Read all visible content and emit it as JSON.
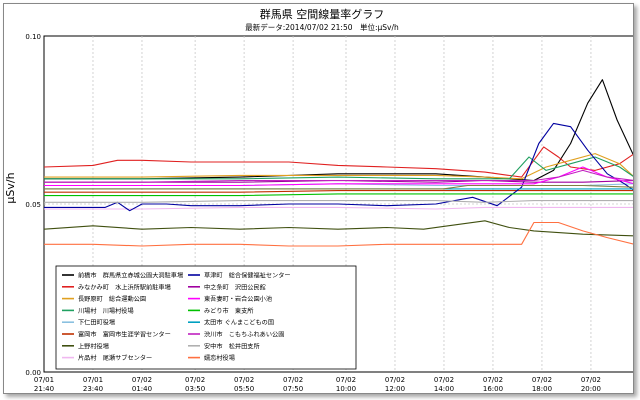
{
  "chart_data": {
    "type": "line",
    "title": "群馬県 空間線量率グラフ",
    "subtitle": "最新データ:2014/07/02 21:50　単位:μSv/h",
    "ylabel": "μSv/h",
    "xlabel": "",
    "ylim": [
      0,
      0.1
    ],
    "y_ticks": [
      "0.00",
      "0.05",
      "0.10"
    ],
    "x_range": [
      0,
      24.17
    ],
    "grid": true,
    "legend_position": "bottom-left-inside",
    "x_ticks": [
      {
        "x": 0,
        "date": "07/01",
        "time": "21:40"
      },
      {
        "x": 2,
        "date": "07/01",
        "time": "23:40"
      },
      {
        "x": 4,
        "date": "07/02",
        "time": "01:40"
      },
      {
        "x": 6.17,
        "date": "07/02",
        "time": "03:50"
      },
      {
        "x": 8.17,
        "date": "07/02",
        "time": "05:50"
      },
      {
        "x": 10.17,
        "date": "07/02",
        "time": "07:50"
      },
      {
        "x": 12.33,
        "date": "07/02",
        "time": "10:00"
      },
      {
        "x": 14.33,
        "date": "07/02",
        "time": "12:00"
      },
      {
        "x": 16.33,
        "date": "07/02",
        "time": "14:00"
      },
      {
        "x": 18.33,
        "date": "07/02",
        "time": "16:00"
      },
      {
        "x": 20.33,
        "date": "07/02",
        "time": "18:00"
      },
      {
        "x": 22.33,
        "date": "07/02",
        "time": "20:00"
      }
    ],
    "series": [
      {
        "name": "前橋市　群馬県立赤城公園大洞駐車場",
        "color": "#000000",
        "x": [
          0,
          4,
          8,
          12,
          16,
          18,
          20,
          20.8,
          21.5,
          22.2,
          22.8,
          23.4,
          24.1
        ],
        "values": [
          0.0575,
          0.0575,
          0.058,
          0.059,
          0.059,
          0.058,
          0.057,
          0.06,
          0.068,
          0.08,
          0.087,
          0.075,
          0.064
        ]
      },
      {
        "name": "みなかみ町　水上浜所駅前駐車場",
        "color": "#e02020",
        "x": [
          0,
          2,
          3,
          4,
          6,
          8,
          10,
          12,
          14,
          16,
          18,
          19.5,
          20.4,
          21,
          21.5,
          22.5,
          23.5,
          24.1
        ],
        "values": [
          0.061,
          0.0615,
          0.063,
          0.063,
          0.0625,
          0.0625,
          0.0625,
          0.0615,
          0.061,
          0.0605,
          0.0595,
          0.058,
          0.067,
          0.064,
          0.061,
          0.06,
          0.062,
          0.065
        ]
      },
      {
        "name": "長野原町　総合運動公園",
        "color": "#e0a020",
        "x": [
          0,
          4,
          8,
          12,
          16,
          18,
          19.5,
          20.5,
          21.5,
          22.5,
          23.5,
          24.1
        ],
        "values": [
          0.058,
          0.058,
          0.0585,
          0.0585,
          0.0585,
          0.058,
          0.0575,
          0.061,
          0.063,
          0.065,
          0.062,
          0.058
        ]
      },
      {
        "name": "川場村　川場村役場",
        "color": "#20a060",
        "x": [
          0,
          4,
          8,
          12,
          16,
          17.5,
          19,
          19.8,
          20.5,
          21.5,
          22.5,
          23.5,
          24.1
        ],
        "values": [
          0.0575,
          0.0575,
          0.0575,
          0.058,
          0.0575,
          0.0575,
          0.0575,
          0.064,
          0.06,
          0.062,
          0.064,
          0.061,
          0.058
        ]
      },
      {
        "name": "下仁田町役場",
        "color": "#8ac0e0",
        "x": [
          0,
          4,
          8,
          12,
          16,
          18,
          20,
          22,
          24.1
        ],
        "values": [
          0.0555,
          0.0555,
          0.0555,
          0.056,
          0.0555,
          0.0555,
          0.0555,
          0.0555,
          0.056
        ]
      },
      {
        "name": "富岡市　富岡市生涯学習センター",
        "color": "#c03000",
        "x": [
          0,
          4,
          8,
          12,
          16,
          18,
          20,
          22,
          24.1
        ],
        "values": [
          0.0535,
          0.0535,
          0.0535,
          0.054,
          0.054,
          0.054,
          0.054,
          0.054,
          0.054
        ]
      },
      {
        "name": "上野村役場",
        "color": "#405010",
        "x": [
          0,
          2,
          4,
          6,
          8,
          10,
          12,
          14,
          15.5,
          16.5,
          18,
          19,
          20,
          22,
          24.1
        ],
        "values": [
          0.0425,
          0.0435,
          0.0425,
          0.043,
          0.0425,
          0.043,
          0.0425,
          0.043,
          0.0425,
          0.0435,
          0.045,
          0.043,
          0.042,
          0.041,
          0.0405
        ]
      },
      {
        "name": "片品村　尾瀬サブセンター",
        "color": "#f0b8f0",
        "x": [
          0,
          4,
          8,
          12,
          16,
          18,
          20,
          22,
          24.1
        ],
        "values": [
          0.0485,
          0.0485,
          0.049,
          0.049,
          0.0485,
          0.049,
          0.049,
          0.049,
          0.049
        ]
      },
      {
        "name": "草津町　総合保健福祉センター",
        "color": "#0000a0",
        "x": [
          0,
          1.5,
          2.5,
          3,
          3.5,
          4,
          5,
          6,
          8,
          10,
          12,
          14,
          16,
          17.5,
          18.5,
          19.5,
          20.2,
          20.8,
          21.5,
          22.2,
          23,
          23.7,
          24.1
        ],
        "values": [
          0.049,
          0.049,
          0.049,
          0.0505,
          0.048,
          0.05,
          0.05,
          0.0495,
          0.0495,
          0.05,
          0.05,
          0.0495,
          0.05,
          0.052,
          0.0495,
          0.055,
          0.068,
          0.074,
          0.073,
          0.066,
          0.059,
          0.056,
          0.054
        ]
      },
      {
        "name": "中之条町　沢田公民館",
        "color": "#a000a0",
        "x": [
          0,
          4,
          8,
          12,
          16,
          18,
          20,
          22,
          24.1
        ],
        "values": [
          0.0565,
          0.0565,
          0.0565,
          0.057,
          0.0565,
          0.057,
          0.0565,
          0.0565,
          0.057
        ]
      },
      {
        "name": "東吾妻町・岩合公園小池",
        "color": "#ff00ff",
        "x": [
          0,
          4,
          8,
          12,
          16,
          18,
          20,
          21,
          22,
          23,
          24.1
        ],
        "values": [
          0.0555,
          0.0555,
          0.0555,
          0.056,
          0.056,
          0.056,
          0.056,
          0.058,
          0.061,
          0.058,
          0.056
        ]
      },
      {
        "name": "みどり市　東支所",
        "color": "#00c000",
        "x": [
          0,
          4,
          8,
          12,
          16,
          18,
          20,
          22,
          24.1
        ],
        "values": [
          0.0525,
          0.0525,
          0.0525,
          0.053,
          0.053,
          0.053,
          0.053,
          0.053,
          0.053
        ]
      },
      {
        "name": "太田市 ぐんまこどもの国",
        "color": "#00a0c0",
        "x": [
          0,
          4,
          8,
          12,
          16,
          18,
          20,
          22,
          24.1
        ],
        "values": [
          0.0545,
          0.0545,
          0.0545,
          0.0545,
          0.0545,
          0.0545,
          0.0545,
          0.0545,
          0.0545
        ]
      },
      {
        "name": "渋川市　こもちふれあい公園",
        "color": "#c020c0",
        "x": [
          0,
          4,
          8,
          12,
          16,
          18,
          20,
          21,
          22,
          23,
          24.1
        ],
        "values": [
          0.0565,
          0.0565,
          0.057,
          0.057,
          0.057,
          0.057,
          0.057,
          0.058,
          0.06,
          0.058,
          0.057
        ]
      },
      {
        "name": "安中市　松井田支所",
        "color": "#b0b0b0",
        "x": [
          0,
          4,
          8,
          12,
          16,
          18,
          20,
          22,
          24.1
        ],
        "values": [
          0.0505,
          0.0505,
          0.051,
          0.051,
          0.051,
          0.0505,
          0.051,
          0.051,
          0.051
        ]
      },
      {
        "name": "嬬恋村役場",
        "color": "#ff7040",
        "x": [
          0,
          2,
          4,
          6,
          8,
          10,
          12,
          14,
          16,
          18,
          19.5,
          20,
          21,
          22,
          23,
          24.1
        ],
        "values": [
          0.038,
          0.038,
          0.0375,
          0.038,
          0.038,
          0.0375,
          0.0375,
          0.038,
          0.038,
          0.038,
          0.038,
          0.0445,
          0.0445,
          0.042,
          0.04,
          0.038
        ]
      },
      {
        "name": "",
        "color": "#808040",
        "x": [
          0,
          4,
          8,
          12,
          15,
          16.3,
          17.3,
          18.5,
          20,
          22,
          24.1
        ],
        "values": [
          0.0545,
          0.0545,
          0.0545,
          0.0545,
          0.0545,
          0.0545,
          0.0555,
          0.0555,
          0.0555,
          0.0555,
          0.055
        ]
      }
    ]
  }
}
